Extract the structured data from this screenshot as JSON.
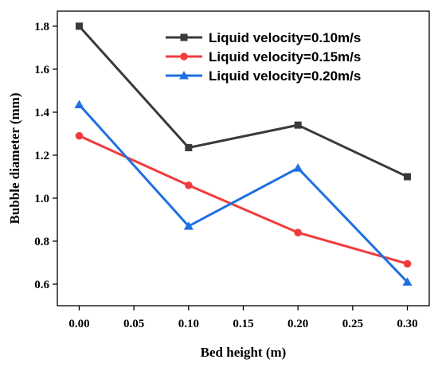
{
  "chart_data": {
    "type": "line",
    "title": "",
    "xlabel": "Bed height (m)",
    "ylabel": "Bubble diameter (mm)",
    "xlim": [
      -0.02,
      0.32
    ],
    "ylim": [
      0.5,
      1.87
    ],
    "xticks": [
      0.0,
      0.05,
      0.1,
      0.15,
      0.2,
      0.25,
      0.3
    ],
    "xtick_labels": [
      "0.00",
      "0.05",
      "0.10",
      "0.15",
      "0.20",
      "0.25",
      "0.30"
    ],
    "yticks": [
      0.6,
      0.8,
      1.0,
      1.2,
      1.4,
      1.6,
      1.8
    ],
    "ytick_labels": [
      "0.6",
      "0.8",
      "1.0",
      "1.2",
      "1.4",
      "1.6",
      "1.8"
    ],
    "grid": false,
    "legend_position": "top-right",
    "x": [
      0.0,
      0.1,
      0.2,
      0.3
    ],
    "series": [
      {
        "name": "Liquid velocity=0.10m/s",
        "values": [
          1.8,
          1.235,
          1.34,
          1.1
        ],
        "color": "#3a3a3a",
        "marker": "square"
      },
      {
        "name": "Liquid velocity=0.15m/s",
        "values": [
          1.29,
          1.06,
          0.84,
          0.695
        ],
        "color": "#f03c3c",
        "marker": "circle"
      },
      {
        "name": "Liquid velocity=0.20m/s",
        "values": [
          1.435,
          0.87,
          1.14,
          0.61
        ],
        "color": "#1f6fe0",
        "marker": "triangle"
      }
    ]
  }
}
